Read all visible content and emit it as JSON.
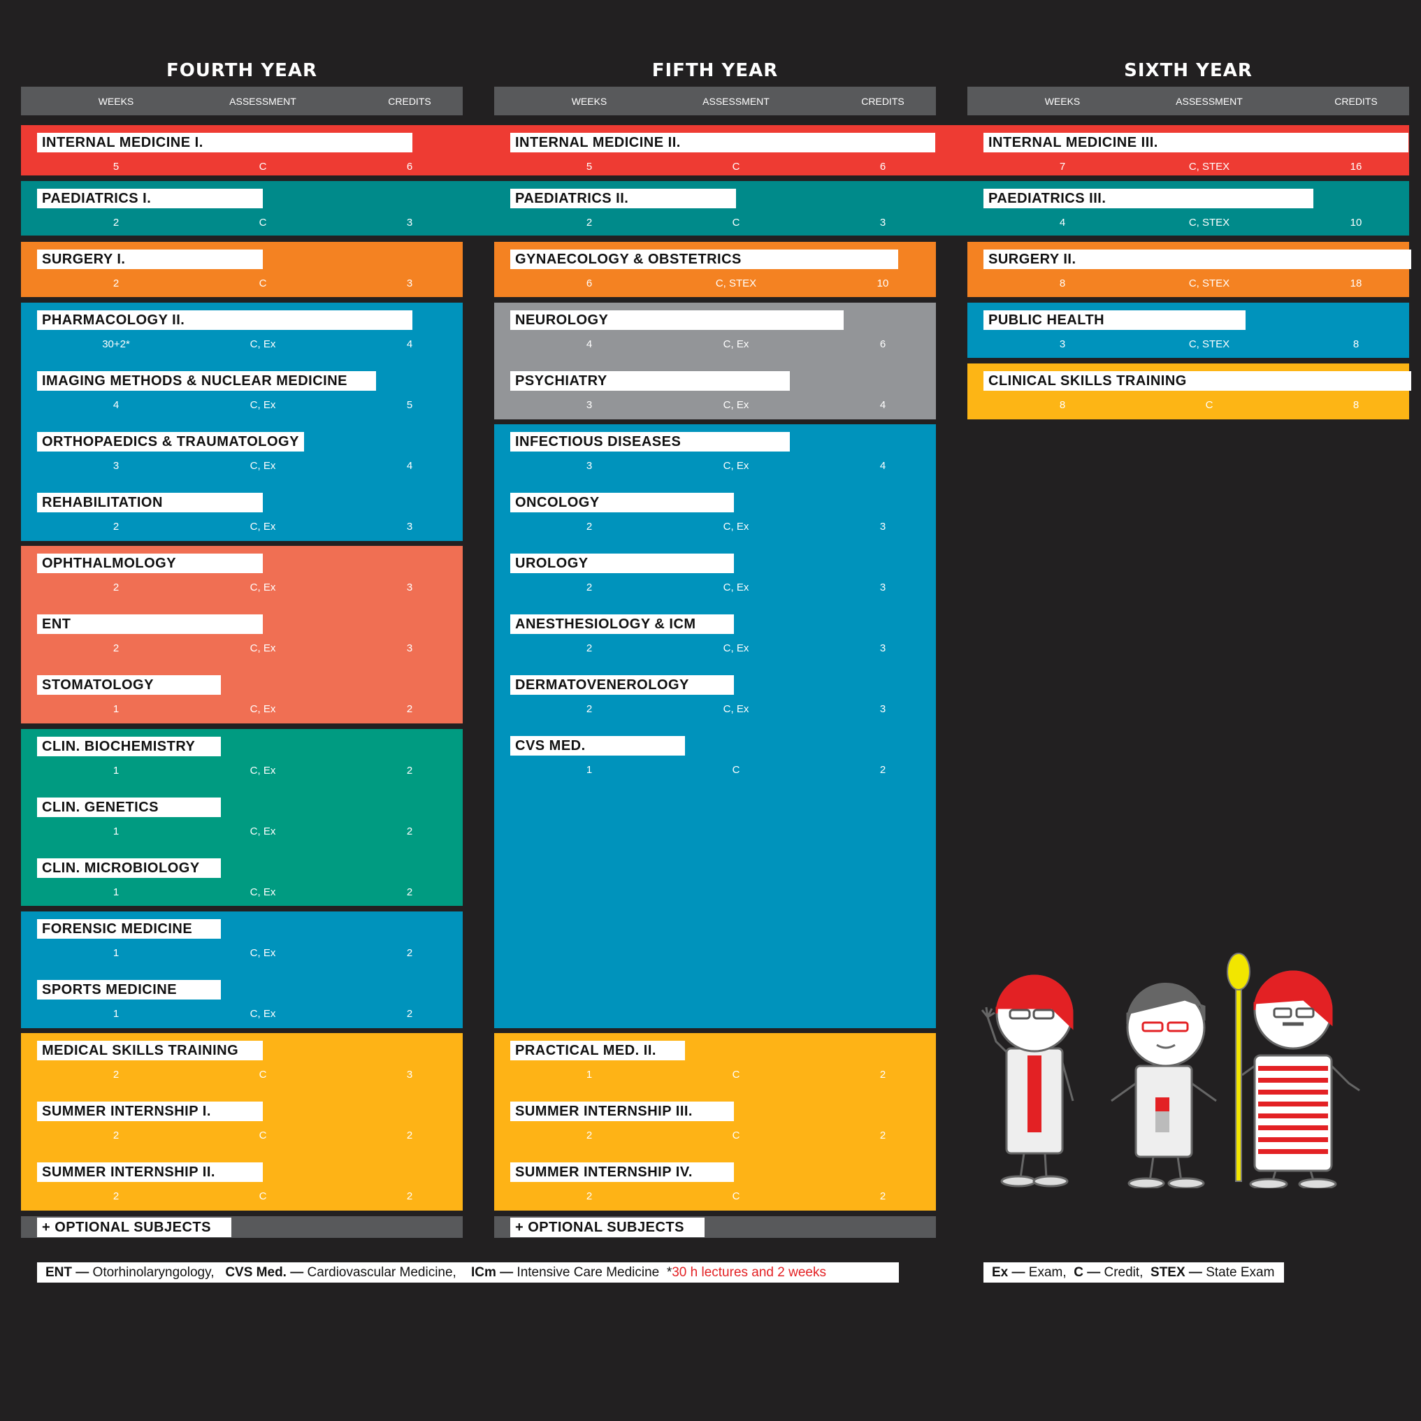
{
  "years": [
    {
      "title": "FOURTH YEAR",
      "headers": {
        "weeks": "WEEKS",
        "assessment": "ASSESSMENT",
        "credits": "CREDITS"
      }
    },
    {
      "title": "FIFTH YEAR",
      "headers": {
        "weeks": "WEEKS",
        "assessment": "ASSESSMENT",
        "credits": "CREDITS"
      }
    },
    {
      "title": "SIXTH YEAR",
      "headers": {
        "weeks": "WEEKS",
        "assessment": "ASSESSMENT",
        "credits": "CREDITS"
      }
    }
  ],
  "colors": {
    "red": "#ee3b33",
    "teal": "#008a8a",
    "orange": "#f48222",
    "blue": "#0093bc",
    "grey": "#939598",
    "salmon": "#f06f53",
    "green": "#009b81",
    "yellow": "#feb316",
    "gold": "#fdb515"
  },
  "internal_medicine": [
    {
      "subject": "INTERNAL MEDICINE I.",
      "weeks": "5",
      "assessment": "C",
      "credits": "6"
    },
    {
      "subject": "INTERNAL MEDICINE II.",
      "weeks": "5",
      "assessment": "C",
      "credits": "6"
    },
    {
      "subject": "INTERNAL MEDICINE III.",
      "weeks": "7",
      "assessment": "C, STEX",
      "credits": "16"
    }
  ],
  "paediatrics": [
    {
      "subject": "PAEDIATRICS I.",
      "weeks": "2",
      "assessment": "C",
      "credits": "3"
    },
    {
      "subject": "PAEDIATRICS II.",
      "weeks": "2",
      "assessment": "C",
      "credits": "3"
    },
    {
      "subject": "PAEDIATRICS III.",
      "weeks": "4",
      "assessment": "C, STEX",
      "credits": "10"
    }
  ],
  "y4": {
    "surgery": [
      {
        "subject": "SURGERY I.",
        "weeks": "2",
        "assessment": "C",
        "credits": "3"
      }
    ],
    "blue1": [
      {
        "subject": "PHARMACOLOGY II.",
        "weeks": "30+2*",
        "assessment": "C, Ex",
        "credits": "4"
      },
      {
        "subject": "IMAGING METHODS & NUCLEAR MEDICINE",
        "weeks": "4",
        "assessment": "C, Ex",
        "credits": "5"
      },
      {
        "subject": "ORTHOPAEDICS & TRAUMATOLOGY",
        "weeks": "3",
        "assessment": "C, Ex",
        "credits": "4"
      },
      {
        "subject": "REHABILITATION",
        "weeks": "2",
        "assessment": "C, Ex",
        "credits": "3"
      }
    ],
    "salmon": [
      {
        "subject": "OPHTHALMOLOGY",
        "weeks": "2",
        "assessment": "C, Ex",
        "credits": "3"
      },
      {
        "subject": "ENT",
        "weeks": "2",
        "assessment": "C, Ex",
        "credits": "3"
      },
      {
        "subject": "STOMATOLOGY",
        "weeks": "1",
        "assessment": "C, Ex",
        "credits": "2"
      }
    ],
    "green": [
      {
        "subject": "CLIN. BIOCHEMISTRY",
        "weeks": "1",
        "assessment": "C, Ex",
        "credits": "2"
      },
      {
        "subject": "CLIN. GENETICS",
        "weeks": "1",
        "assessment": "C, Ex",
        "credits": "2"
      },
      {
        "subject": "CLIN.  MICROBIOLOGY",
        "weeks": "1",
        "assessment": "C, Ex",
        "credits": "2"
      }
    ],
    "blue2": [
      {
        "subject": "FORENSIC MEDICINE",
        "weeks": "1",
        "assessment": "C, Ex",
        "credits": "2"
      },
      {
        "subject": "SPORTS MEDICINE",
        "weeks": "1",
        "assessment": "C, Ex",
        "credits": "2"
      }
    ],
    "yellow": [
      {
        "subject": "MEDICAL SKILLS TRAINING",
        "weeks": "2",
        "assessment": "C",
        "credits": "3"
      },
      {
        "subject": "SUMMER INTERNSHIP I.",
        "weeks": "2",
        "assessment": "C",
        "credits": "2"
      },
      {
        "subject": "SUMMER INTERNSHIP II.",
        "weeks": "2",
        "assessment": "C",
        "credits": "2"
      }
    ],
    "optional": "+ OPTIONAL SUBJECTS"
  },
  "y5": {
    "orange": [
      {
        "subject": "GYNAECOLOGY & OBSTETRICS",
        "weeks": "6",
        "assessment": "C, STEX",
        "credits": "10"
      }
    ],
    "grey": [
      {
        "subject": "NEUROLOGY",
        "weeks": "4",
        "assessment": "C, Ex",
        "credits": "6"
      },
      {
        "subject": "PSYCHIATRY",
        "weeks": "3",
        "assessment": "C, Ex",
        "credits": "4"
      }
    ],
    "blue": [
      {
        "subject": "INFECTIOUS DISEASES",
        "weeks": "3",
        "assessment": "C, Ex",
        "credits": "4"
      },
      {
        "subject": "ONCOLOGY",
        "weeks": "2",
        "assessment": "C, Ex",
        "credits": "3"
      },
      {
        "subject": "UROLOGY",
        "weeks": "2",
        "assessment": "C, Ex",
        "credits": "3"
      },
      {
        "subject": "ANESTHESIOLOGY & ICM",
        "weeks": "2",
        "assessment": "C, Ex",
        "credits": "3"
      },
      {
        "subject": "DERMATOVENEROLOGY",
        "weeks": "2",
        "assessment": "C, Ex",
        "credits": "3"
      },
      {
        "subject": "CVS MED.",
        "weeks": "1",
        "assessment": "C",
        "credits": "2"
      }
    ],
    "yellow": [
      {
        "subject": "PRACTICAL MED. II.",
        "weeks": "1",
        "assessment": "C",
        "credits": "2"
      },
      {
        "subject": "SUMMER INTERNSHIP III.",
        "weeks": "2",
        "assessment": "C",
        "credits": "2"
      },
      {
        "subject": "SUMMER INTERNSHIP IV.",
        "weeks": "2",
        "assessment": "C",
        "credits": "2"
      }
    ],
    "optional": "+ OPTIONAL SUBJECTS"
  },
  "y6": {
    "orange": [
      {
        "subject": "SURGERY II.",
        "weeks": "8",
        "assessment": "C, STEX",
        "credits": "18"
      }
    ],
    "blue": [
      {
        "subject": "PUBLIC HEALTH",
        "weeks": "3",
        "assessment": "C, STEX",
        "credits": "8"
      }
    ],
    "yellow": [
      {
        "subject": "CLINICAL SKILLS TRAINING",
        "weeks": "8",
        "assessment": "C",
        "credits": "8"
      }
    ]
  },
  "legend_left": {
    "ent_abbr": "ENT —",
    "ent_def": " Otorhinolaryngology,",
    "cvs_abbr": "CVS Med. —",
    "cvs_def": " Cardiovascular Medicine,",
    "icm_abbr": "ICm —",
    "icm_def": " Intensive Care Medicine",
    "note_star": "*",
    "note": "30 h lectures and 2 weeks"
  },
  "legend_right": {
    "ex_abbr": "Ex —",
    "ex_def": " Exam,",
    "c_abbr": "C —",
    "c_def": " Credit,",
    "stex_abbr": "STEX —",
    "stex_def": " State Exam"
  }
}
